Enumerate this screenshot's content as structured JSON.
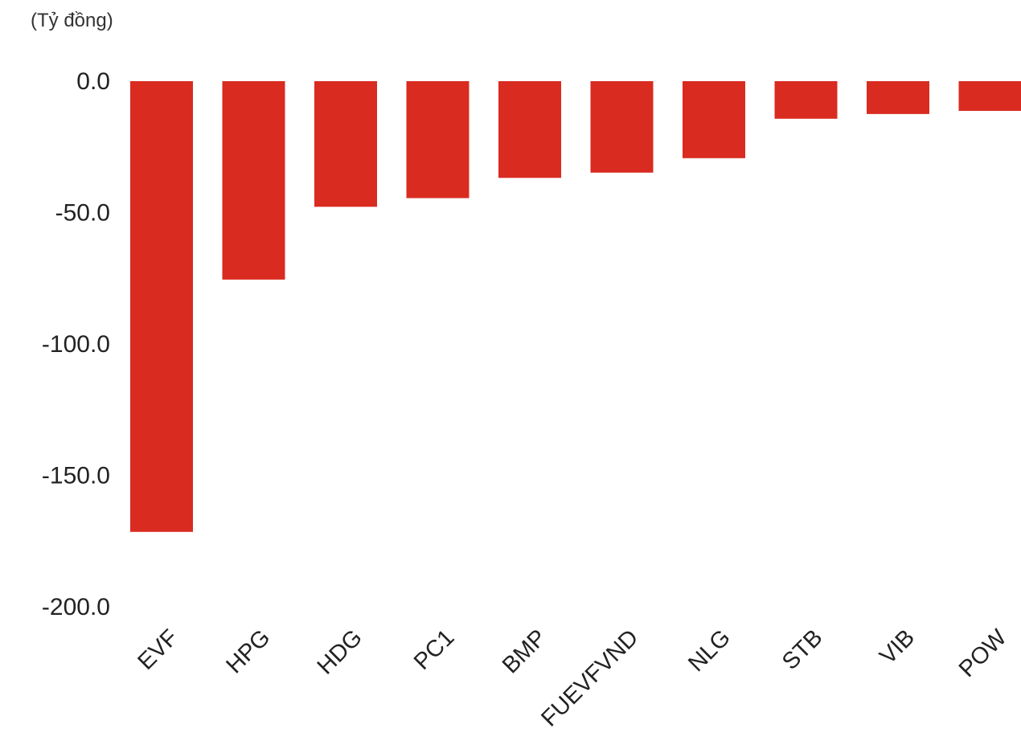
{
  "chart_data": {
    "type": "bar",
    "unit_label": "(Tỷ đồng)",
    "categories": [
      "EVF",
      "HPG",
      "HDG",
      "PC1",
      "BMP",
      "FUEVFVND",
      "NLG",
      "STB",
      "VIB",
      "POW"
    ],
    "values": [
      -171.5,
      -75.5,
      -47.8,
      -44.5,
      -36.8,
      -34.8,
      -29.3,
      -14.3,
      -12.5,
      -11.3
    ],
    "yticks": [
      0,
      -50,
      -100,
      -150,
      -200
    ],
    "ytick_labels": [
      "0.0",
      "-50.0",
      "-100.0",
      "-150.0",
      "-200.0"
    ],
    "ylim": [
      -200,
      0
    ],
    "bar_color": "#d92b20",
    "grid": false,
    "legend": "none"
  }
}
